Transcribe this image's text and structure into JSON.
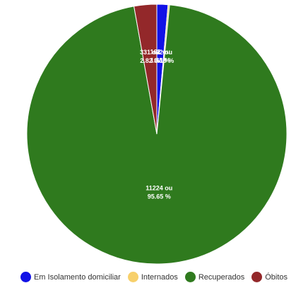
{
  "chart_data": {
    "type": "pie",
    "categories": [
      "Em Isolamento domiciliar",
      "Internados",
      "Recuperados",
      "Óbitos"
    ],
    "values": [
      162,
      22,
      11224,
      331
    ],
    "colors": [
      "#1212e6",
      "#f7d06b",
      "#2f7a1e",
      "#93282a"
    ],
    "slice_labels": [
      "162 ou",
      "22 ou",
      "11224 ou",
      "331 ou"
    ],
    "slice_percents": [
      "1.38 %",
      "0.19 %",
      "95.65 %",
      "2.82 %"
    ],
    "title": "",
    "legend_position": "bottom"
  }
}
